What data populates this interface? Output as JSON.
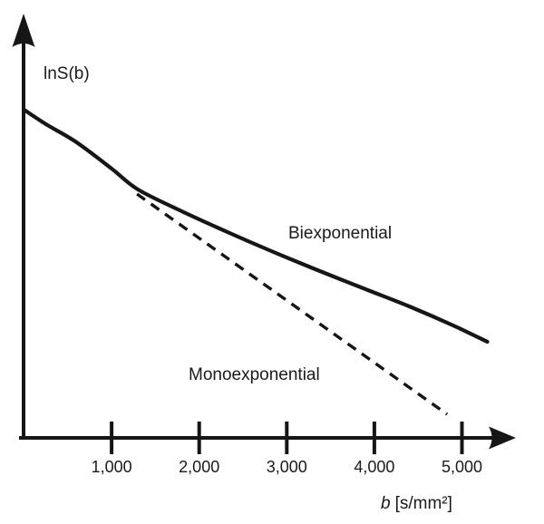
{
  "figure": {
    "description": "Signal decay schematic plot",
    "background_color": "#ffffff",
    "ink_color": "#161616"
  },
  "chart_data": {
    "type": "line",
    "title": "",
    "ylabel": "lnS(b)",
    "xlabel": "b [s/mm²]",
    "xlabel_variable": "b",
    "xlabel_unit": "[s/mm²]",
    "x_axis": {
      "min": 0,
      "max": 5600,
      "tick_values": [
        1000,
        2000,
        3000,
        4000,
        5000
      ],
      "tick_labels": [
        "1,000",
        "2,000",
        "3,000",
        "4,000",
        "5,000"
      ]
    },
    "y_axis": {
      "label": "lnS(b)",
      "scale": "arbitrary log-signal units, no ticks shown"
    },
    "grid": false,
    "legend": "inline text labels next to lines",
    "series": [
      {
        "name": "Biexponential",
        "line_style": "solid",
        "color": "#161616",
        "points": [
          [
            0,
            3.62
          ],
          [
            250,
            3.46
          ],
          [
            600,
            3.26
          ],
          [
            1000,
            2.97
          ],
          [
            1300,
            2.74
          ],
          [
            1800,
            2.5
          ],
          [
            2300,
            2.28
          ],
          [
            2800,
            2.07
          ],
          [
            3300,
            1.87
          ],
          [
            3900,
            1.64
          ],
          [
            4400,
            1.45
          ],
          [
            4900,
            1.24
          ],
          [
            5290,
            1.06
          ]
        ]
      },
      {
        "name": "Monoexponential",
        "line_style": "dashed",
        "color": "#161616",
        "points": [
          [
            1290,
            2.69
          ],
          [
            4830,
            0.26
          ]
        ]
      }
    ]
  },
  "icons": {
    "y_axis_arrow": "up-arrowhead",
    "x_axis_arrow": "right-arrowhead"
  }
}
